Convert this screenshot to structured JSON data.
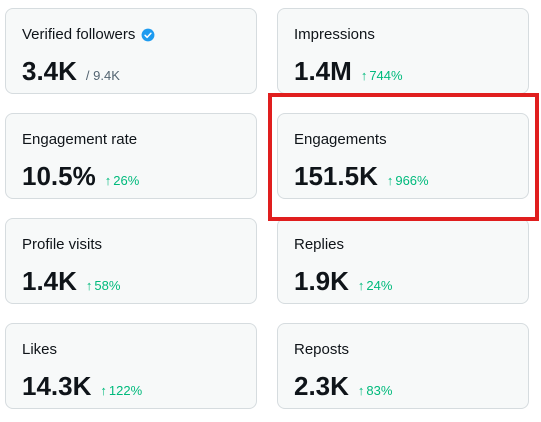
{
  "accent_color": "#1d9bf0",
  "trend_color": "#00ba7c",
  "highlight_color": "#e01e1e",
  "cards": {
    "verified_followers": {
      "label": "Verified followers",
      "value": "3.4K",
      "sub": "/ 9.4K",
      "icon": "verified-badge-icon"
    },
    "impressions": {
      "label": "Impressions",
      "value": "1.4M",
      "trend": "744%"
    },
    "engagement_rate": {
      "label": "Engagement rate",
      "value": "10.5%",
      "trend": "26%"
    },
    "engagements": {
      "label": "Engagements",
      "value": "151.5K",
      "trend": "966%"
    },
    "profile_visits": {
      "label": "Profile visits",
      "value": "1.4K",
      "trend": "58%"
    },
    "replies": {
      "label": "Replies",
      "value": "1.9K",
      "trend": "24%"
    },
    "likes": {
      "label": "Likes",
      "value": "14.3K",
      "trend": "122%"
    },
    "reposts": {
      "label": "Reposts",
      "value": "2.3K",
      "trend": "83%"
    }
  },
  "trend_arrow": "↑"
}
